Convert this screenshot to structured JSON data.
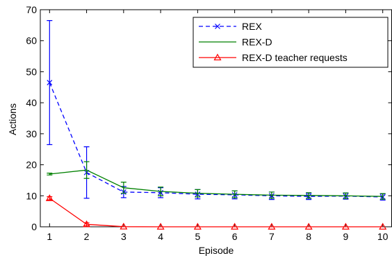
{
  "chart_data": {
    "type": "line",
    "xlabel": "Episode",
    "ylabel": "Actions",
    "xlim": [
      0.75,
      10.25
    ],
    "ylim": [
      0,
      70
    ],
    "x_ticks": [
      1,
      2,
      3,
      4,
      5,
      6,
      7,
      8,
      9,
      10
    ],
    "y_ticks": [
      0,
      10,
      20,
      30,
      40,
      50,
      60,
      70
    ],
    "legend_position": "top-right",
    "grid": false,
    "x": [
      1,
      2,
      3,
      4,
      5,
      6,
      7,
      8,
      9,
      10
    ],
    "series": [
      {
        "name": "REX",
        "color": "#0000ff",
        "line_style": "dashed",
        "marker": "x",
        "values": [
          46.5,
          17.5,
          11.2,
          11.0,
          10.5,
          10.3,
          10.0,
          9.8,
          9.9,
          9.6
        ],
        "error_low": [
          26.5,
          9.2,
          9.4,
          9.4,
          9.0,
          9.0,
          8.8,
          8.8,
          8.9,
          8.6
        ],
        "error_high": [
          66.5,
          25.8,
          13.0,
          12.6,
          12.0,
          11.6,
          11.2,
          10.8,
          10.9,
          10.6
        ]
      },
      {
        "name": "REX-D",
        "color": "#008000",
        "line_style": "solid",
        "marker": "none",
        "values": [
          17.0,
          18.3,
          12.6,
          11.4,
          10.8,
          10.5,
          10.2,
          10.1,
          10.0,
          9.8
        ],
        "error_low": [
          16.7,
          15.6,
          10.8,
          10.0,
          9.6,
          9.4,
          9.2,
          9.2,
          9.1,
          8.9
        ],
        "error_high": [
          17.3,
          21.0,
          14.4,
          12.8,
          12.0,
          11.6,
          11.2,
          11.0,
          10.9,
          10.7
        ]
      },
      {
        "name": "REX-D teacher requests",
        "color": "#ff0000",
        "line_style": "solid",
        "marker": "triangle",
        "values": [
          9.2,
          0.8,
          0.05,
          0,
          0,
          0,
          0,
          0,
          0,
          0
        ],
        "error_low": [
          8.7,
          0.3,
          0,
          0,
          0,
          0,
          0,
          0,
          0,
          0
        ],
        "error_high": [
          9.7,
          1.3,
          0.1,
          0,
          0,
          0,
          0,
          0,
          0,
          0
        ]
      }
    ]
  }
}
